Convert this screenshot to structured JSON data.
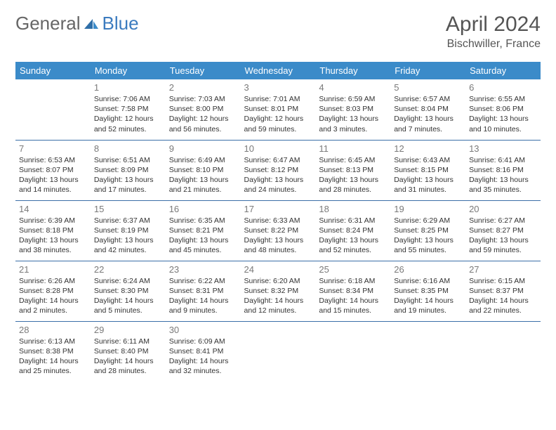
{
  "brand": {
    "part1": "General",
    "part2": "Blue"
  },
  "title": "April 2024",
  "location": "Bischwiller, France",
  "colors": {
    "header_bg": "#3b8bc9",
    "header_fg": "#ffffff",
    "row_border": "#3b6fa8",
    "text": "#333333",
    "daynum": "#7a7a7a",
    "brand_gray": "#666666",
    "brand_blue": "#3b7bbf"
  },
  "weekdays": [
    "Sunday",
    "Monday",
    "Tuesday",
    "Wednesday",
    "Thursday",
    "Friday",
    "Saturday"
  ],
  "weeks": [
    [
      null,
      {
        "n": "1",
        "sr": "7:06 AM",
        "ss": "7:58 PM",
        "dl": "12 hours and 52 minutes."
      },
      {
        "n": "2",
        "sr": "7:03 AM",
        "ss": "8:00 PM",
        "dl": "12 hours and 56 minutes."
      },
      {
        "n": "3",
        "sr": "7:01 AM",
        "ss": "8:01 PM",
        "dl": "12 hours and 59 minutes."
      },
      {
        "n": "4",
        "sr": "6:59 AM",
        "ss": "8:03 PM",
        "dl": "13 hours and 3 minutes."
      },
      {
        "n": "5",
        "sr": "6:57 AM",
        "ss": "8:04 PM",
        "dl": "13 hours and 7 minutes."
      },
      {
        "n": "6",
        "sr": "6:55 AM",
        "ss": "8:06 PM",
        "dl": "13 hours and 10 minutes."
      }
    ],
    [
      {
        "n": "7",
        "sr": "6:53 AM",
        "ss": "8:07 PM",
        "dl": "13 hours and 14 minutes."
      },
      {
        "n": "8",
        "sr": "6:51 AM",
        "ss": "8:09 PM",
        "dl": "13 hours and 17 minutes."
      },
      {
        "n": "9",
        "sr": "6:49 AM",
        "ss": "8:10 PM",
        "dl": "13 hours and 21 minutes."
      },
      {
        "n": "10",
        "sr": "6:47 AM",
        "ss": "8:12 PM",
        "dl": "13 hours and 24 minutes."
      },
      {
        "n": "11",
        "sr": "6:45 AM",
        "ss": "8:13 PM",
        "dl": "13 hours and 28 minutes."
      },
      {
        "n": "12",
        "sr": "6:43 AM",
        "ss": "8:15 PM",
        "dl": "13 hours and 31 minutes."
      },
      {
        "n": "13",
        "sr": "6:41 AM",
        "ss": "8:16 PM",
        "dl": "13 hours and 35 minutes."
      }
    ],
    [
      {
        "n": "14",
        "sr": "6:39 AM",
        "ss": "8:18 PM",
        "dl": "13 hours and 38 minutes."
      },
      {
        "n": "15",
        "sr": "6:37 AM",
        "ss": "8:19 PM",
        "dl": "13 hours and 42 minutes."
      },
      {
        "n": "16",
        "sr": "6:35 AM",
        "ss": "8:21 PM",
        "dl": "13 hours and 45 minutes."
      },
      {
        "n": "17",
        "sr": "6:33 AM",
        "ss": "8:22 PM",
        "dl": "13 hours and 48 minutes."
      },
      {
        "n": "18",
        "sr": "6:31 AM",
        "ss": "8:24 PM",
        "dl": "13 hours and 52 minutes."
      },
      {
        "n": "19",
        "sr": "6:29 AM",
        "ss": "8:25 PM",
        "dl": "13 hours and 55 minutes."
      },
      {
        "n": "20",
        "sr": "6:27 AM",
        "ss": "8:27 PM",
        "dl": "13 hours and 59 minutes."
      }
    ],
    [
      {
        "n": "21",
        "sr": "6:26 AM",
        "ss": "8:28 PM",
        "dl": "14 hours and 2 minutes."
      },
      {
        "n": "22",
        "sr": "6:24 AM",
        "ss": "8:30 PM",
        "dl": "14 hours and 5 minutes."
      },
      {
        "n": "23",
        "sr": "6:22 AM",
        "ss": "8:31 PM",
        "dl": "14 hours and 9 minutes."
      },
      {
        "n": "24",
        "sr": "6:20 AM",
        "ss": "8:32 PM",
        "dl": "14 hours and 12 minutes."
      },
      {
        "n": "25",
        "sr": "6:18 AM",
        "ss": "8:34 PM",
        "dl": "14 hours and 15 minutes."
      },
      {
        "n": "26",
        "sr": "6:16 AM",
        "ss": "8:35 PM",
        "dl": "14 hours and 19 minutes."
      },
      {
        "n": "27",
        "sr": "6:15 AM",
        "ss": "8:37 PM",
        "dl": "14 hours and 22 minutes."
      }
    ],
    [
      {
        "n": "28",
        "sr": "6:13 AM",
        "ss": "8:38 PM",
        "dl": "14 hours and 25 minutes."
      },
      {
        "n": "29",
        "sr": "6:11 AM",
        "ss": "8:40 PM",
        "dl": "14 hours and 28 minutes."
      },
      {
        "n": "30",
        "sr": "6:09 AM",
        "ss": "8:41 PM",
        "dl": "14 hours and 32 minutes."
      },
      null,
      null,
      null,
      null
    ]
  ],
  "labels": {
    "sunrise": "Sunrise: ",
    "sunset": "Sunset: ",
    "daylight": "Daylight: "
  }
}
